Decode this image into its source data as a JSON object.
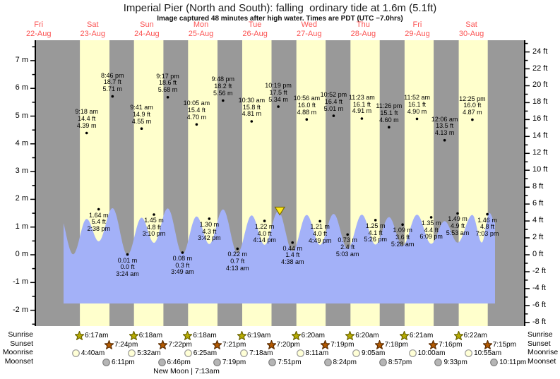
{
  "title": "Imperial Pier (North and South): falling  ordinary tide at 1.6m (5.1ft)",
  "subtitle": "Image captured 48 minutes after high water. Times are PDT (UTC −7.0hrs)",
  "row_labels": {
    "sunrise": "Sunrise",
    "sunset": "Sunset",
    "moonrise": "Moonrise",
    "moonset": "Moonset"
  },
  "colors": {
    "day_band": "#ffffcc",
    "night_band": "#999999",
    "water": "#a3b1f8",
    "date_text": "#fb5252",
    "sunrise_star": "#b8ad00",
    "sunset_star": "#b55a00",
    "moonrise_circle": "#ffffd6",
    "moonset_circle": "#b5b5b5",
    "marker_yellow": "#ffe81a"
  },
  "chart_data": {
    "type": "line",
    "title": "Imperial Pier (North and South): falling  ordinary tide at 1.6m (5.1ft)",
    "ylabel_left_unit": "m",
    "ylabel_right_unit": "ft",
    "y_left_range": [
      -2,
      7
    ],
    "y_right_range": [
      -8,
      24
    ],
    "days": [
      {
        "name": "Fri",
        "date": "22-Aug"
      },
      {
        "name": "Sat",
        "date": "23-Aug"
      },
      {
        "name": "Sun",
        "date": "24-Aug"
      },
      {
        "name": "Mon",
        "date": "25-Aug"
      },
      {
        "name": "Tue",
        "date": "26-Aug"
      },
      {
        "name": "Wed",
        "date": "27-Aug"
      },
      {
        "name": "Thu",
        "date": "28-Aug"
      },
      {
        "name": "Fri",
        "date": "29-Aug"
      },
      {
        "name": "Sat",
        "date": "30-Aug"
      }
    ],
    "tide_events": [
      {
        "day": 1,
        "time": "9:18 am",
        "height_ft": 14.4,
        "height_m": 4.39,
        "kind": "high"
      },
      {
        "day": 1,
        "time": "2:38 pm",
        "height_ft": 5.4,
        "height_m": 1.64,
        "kind": "low"
      },
      {
        "day": 1,
        "time": "8:46 pm",
        "height_ft": 18.7,
        "height_m": 5.71,
        "kind": "high"
      },
      {
        "day": 2,
        "time": "3:24 am",
        "height_ft": 0.0,
        "height_m": 0.01,
        "kind": "low"
      },
      {
        "day": 2,
        "time": "9:41 am",
        "height_ft": 14.9,
        "height_m": 4.55,
        "kind": "high"
      },
      {
        "day": 2,
        "time": "3:10 pm",
        "height_ft": 4.8,
        "height_m": 1.45,
        "kind": "low"
      },
      {
        "day": 2,
        "time": "9:17 pm",
        "height_ft": 18.6,
        "height_m": 5.68,
        "kind": "high"
      },
      {
        "day": 3,
        "time": "3:49 am",
        "height_ft": 0.3,
        "height_m": 0.08,
        "kind": "low"
      },
      {
        "day": 3,
        "time": "10:05 am",
        "height_ft": 15.4,
        "height_m": 4.7,
        "kind": "high"
      },
      {
        "day": 3,
        "time": "3:42 pm",
        "height_ft": 4.3,
        "height_m": 1.3,
        "kind": "low"
      },
      {
        "day": 3,
        "time": "9:48 pm",
        "height_ft": 18.2,
        "height_m": 5.56,
        "kind": "high"
      },
      {
        "day": 4,
        "time": "4:13 am",
        "height_ft": 0.7,
        "height_m": 0.22,
        "kind": "low"
      },
      {
        "day": 4,
        "time": "10:30 am",
        "height_ft": 15.8,
        "height_m": 4.81,
        "kind": "high"
      },
      {
        "day": 4,
        "time": "4:14 pm",
        "height_ft": 4.0,
        "height_m": 1.22,
        "kind": "low"
      },
      {
        "day": 4,
        "time": "10:19 pm",
        "height_ft": 17.5,
        "height_m": 5.34,
        "kind": "high"
      },
      {
        "day": 5,
        "time": "4:38 am",
        "height_ft": 1.4,
        "height_m": 0.44,
        "kind": "low"
      },
      {
        "day": 5,
        "time": "10:56 am",
        "height_ft": 16.0,
        "height_m": 4.88,
        "kind": "high"
      },
      {
        "day": 5,
        "time": "4:49 pm",
        "height_ft": 4.0,
        "height_m": 1.21,
        "kind": "low"
      },
      {
        "day": 5,
        "time": "10:52 pm",
        "height_ft": 16.4,
        "height_m": 5.01,
        "kind": "high"
      },
      {
        "day": 6,
        "time": "5:03 am",
        "height_ft": 2.4,
        "height_m": 0.73,
        "kind": "low"
      },
      {
        "day": 6,
        "time": "11:23 am",
        "height_ft": 16.1,
        "height_m": 4.91,
        "kind": "high"
      },
      {
        "day": 6,
        "time": "5:26 pm",
        "height_ft": 4.1,
        "height_m": 1.25,
        "kind": "low"
      },
      {
        "day": 6,
        "time": "11:26 pm",
        "height_ft": 15.1,
        "height_m": 4.6,
        "kind": "high"
      },
      {
        "day": 7,
        "time": "5:28 am",
        "height_ft": 3.6,
        "height_m": 1.09,
        "kind": "low"
      },
      {
        "day": 7,
        "time": "11:52 am",
        "height_ft": 16.1,
        "height_m": 4.9,
        "kind": "high"
      },
      {
        "day": 7,
        "time": "6:09 pm",
        "height_ft": 4.4,
        "height_m": 1.35,
        "kind": "low"
      },
      {
        "day": 8,
        "time": "12:06 am",
        "height_ft": 13.5,
        "height_m": 4.13,
        "kind": "high"
      },
      {
        "day": 8,
        "time": "5:53 am",
        "height_ft": 4.9,
        "height_m": 1.49,
        "kind": "low"
      },
      {
        "day": 8,
        "time": "12:25 pm",
        "height_ft": 16.0,
        "height_m": 4.87,
        "kind": "high"
      },
      {
        "day": 8,
        "time": "7:03 pm",
        "height_ft": 4.8,
        "height_m": 1.46,
        "kind": "low"
      }
    ],
    "astronomy": {
      "sunrise": [
        "6:17am",
        "6:18am",
        "6:18am",
        "6:19am",
        "6:20am",
        "6:20am",
        "6:21am",
        "6:22am"
      ],
      "sunset": [
        "7:24pm",
        "7:22pm",
        "7:21pm",
        "7:20pm",
        "7:19pm",
        "7:18pm",
        "7:16pm",
        "7:15pm"
      ],
      "moonrise": [
        "4:40am",
        "5:32am",
        "6:25am",
        "7:18am",
        "8:11am",
        "9:05am",
        "10:00am",
        "10:55am"
      ],
      "moonset": [
        "6:11pm",
        "6:46pm",
        "7:19pm",
        "7:51pm",
        "8:24pm",
        "8:57pm",
        "9:33pm",
        "10:11pm"
      ]
    },
    "new_moon_label": "New Moon | 7:13am"
  }
}
